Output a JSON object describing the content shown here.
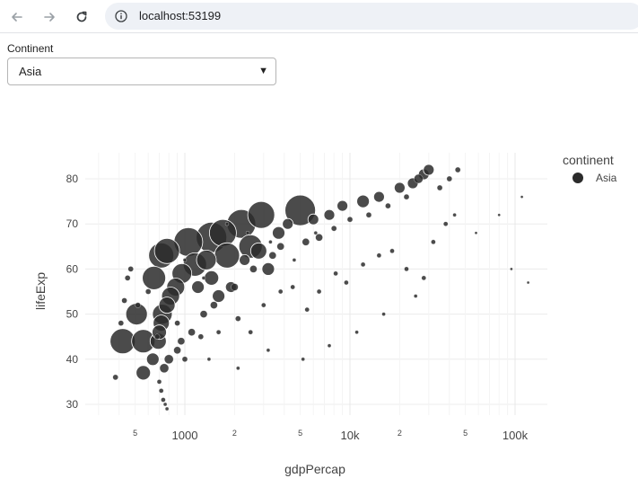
{
  "browser": {
    "back_icon": "arrow-left-icon",
    "forward_icon": "arrow-right-icon",
    "reload_icon": "reload-icon",
    "info_icon": "info-icon",
    "url": "localhost:53199"
  },
  "filter": {
    "label": "Continent",
    "selected": "Asia",
    "arrow_icon": "triangle-down-icon"
  },
  "chart_data": {
    "type": "scatter",
    "xlabel": "gdpPercap",
    "ylabel": "lifeExp",
    "x_scale": "log",
    "xlim": [
      250,
      140000
    ],
    "ylim": [
      25,
      87
    ],
    "grid": true,
    "legend_title": "continent",
    "legend_placement": "top-right",
    "x_ticks_major": [
      "1000",
      "10k",
      "100k"
    ],
    "x_ticks_minor": [
      "5",
      "2",
      "5",
      "2",
      "5"
    ],
    "y_ticks": [
      "30",
      "40",
      "50",
      "60",
      "70",
      "80"
    ],
    "marker_color": "#2b2b2b",
    "series": [
      {
        "name": "Asia",
        "points": [
          [
            420,
            44,
            28
          ],
          [
            560,
            44,
            26
          ],
          [
            510,
            50,
            24
          ],
          [
            730,
            50,
            22
          ],
          [
            650,
            58,
            26
          ],
          [
            720,
            63,
            28
          ],
          [
            780,
            64,
            28
          ],
          [
            1050,
            66,
            32
          ],
          [
            1450,
            67,
            34
          ],
          [
            1700,
            68,
            30
          ],
          [
            2200,
            70,
            32
          ],
          [
            2900,
            72,
            30
          ],
          [
            5000,
            73,
            34
          ],
          [
            2500,
            65,
            26
          ],
          [
            1800,
            63,
            28
          ],
          [
            1350,
            62,
            22
          ],
          [
            1150,
            61,
            26
          ],
          [
            960,
            59,
            22
          ],
          [
            880,
            56,
            20
          ],
          [
            820,
            54,
            20
          ],
          [
            780,
            52,
            18
          ],
          [
            720,
            48,
            18
          ],
          [
            700,
            46,
            16
          ],
          [
            690,
            44,
            18
          ],
          [
            640,
            40,
            14
          ],
          [
            560,
            37,
            16
          ],
          [
            1200,
            56,
            14
          ],
          [
            1450,
            58,
            16
          ],
          [
            2800,
            64,
            18
          ],
          [
            3200,
            60,
            14
          ],
          [
            1600,
            54,
            14
          ],
          [
            1900,
            56,
            12
          ],
          [
            2300,
            62,
            12
          ],
          [
            3700,
            68,
            14
          ],
          [
            4200,
            70,
            12
          ],
          [
            6000,
            71,
            12
          ],
          [
            7500,
            72,
            12
          ],
          [
            9000,
            74,
            12
          ],
          [
            12000,
            75,
            14
          ],
          [
            15000,
            76,
            12
          ],
          [
            20000,
            78,
            12
          ],
          [
            24000,
            79,
            12
          ],
          [
            28000,
            81,
            12
          ],
          [
            30000,
            82,
            12
          ],
          [
            26000,
            80,
            10
          ],
          [
            750,
            38,
            10
          ],
          [
            800,
            40,
            10
          ],
          [
            900,
            42,
            8
          ],
          [
            950,
            44,
            8
          ],
          [
            1000,
            40,
            6
          ],
          [
            1100,
            46,
            8
          ],
          [
            1300,
            50,
            8
          ],
          [
            1500,
            52,
            8
          ],
          [
            2000,
            56,
            8
          ],
          [
            2600,
            60,
            8
          ],
          [
            3400,
            63,
            8
          ],
          [
            3800,
            65,
            8
          ],
          [
            5400,
            66,
            8
          ],
          [
            6500,
            67,
            8
          ],
          [
            8000,
            69,
            6
          ],
          [
            10000,
            71,
            6
          ],
          [
            13000,
            72,
            6
          ],
          [
            17000,
            74,
            6
          ],
          [
            22000,
            76,
            6
          ],
          [
            35000,
            78,
            6
          ],
          [
            40000,
            80,
            6
          ],
          [
            45000,
            82,
            6
          ],
          [
            380,
            36,
            6
          ],
          [
            410,
            48,
            6
          ],
          [
            430,
            53,
            6
          ],
          [
            450,
            58,
            6
          ],
          [
            470,
            60,
            6
          ],
          [
            520,
            52,
            6
          ],
          [
            600,
            55,
            6
          ],
          [
            680,
            45,
            6
          ],
          [
            700,
            35,
            5
          ],
          [
            720,
            33,
            5
          ],
          [
            740,
            31,
            5
          ],
          [
            760,
            30,
            4
          ],
          [
            780,
            29,
            4
          ],
          [
            900,
            48,
            6
          ],
          [
            1250,
            45,
            6
          ],
          [
            1600,
            46,
            5
          ],
          [
            2100,
            49,
            6
          ],
          [
            2500,
            46,
            5
          ],
          [
            3000,
            52,
            5
          ],
          [
            3800,
            55,
            5
          ],
          [
            4500,
            56,
            5
          ],
          [
            5500,
            51,
            5
          ],
          [
            6500,
            55,
            5
          ],
          [
            8200,
            59,
            5
          ],
          [
            9500,
            57,
            5
          ],
          [
            12000,
            61,
            5
          ],
          [
            15000,
            63,
            5
          ],
          [
            18000,
            64,
            5
          ],
          [
            22000,
            60,
            5
          ],
          [
            28000,
            58,
            5
          ],
          [
            32000,
            66,
            5
          ],
          [
            38000,
            70,
            5
          ],
          [
            43000,
            72,
            4
          ],
          [
            1400,
            40,
            4
          ],
          [
            2100,
            38,
            4
          ],
          [
            3200,
            42,
            4
          ],
          [
            5200,
            40,
            4
          ],
          [
            7500,
            43,
            4
          ],
          [
            11000,
            46,
            4
          ],
          [
            16000,
            50,
            4
          ],
          [
            25000,
            54,
            4
          ],
          [
            58000,
            68,
            3
          ],
          [
            80000,
            72,
            3
          ],
          [
            110000,
            76,
            3
          ],
          [
            120000,
            57,
            3
          ],
          [
            95000,
            60,
            3
          ],
          [
            1800,
            70,
            4
          ],
          [
            2400,
            68,
            4
          ],
          [
            3300,
            66,
            4
          ],
          [
            4600,
            62,
            4
          ],
          [
            6200,
            68,
            4
          ],
          [
            1000,
            62,
            4
          ],
          [
            1300,
            58,
            4
          ]
        ]
      }
    ]
  }
}
